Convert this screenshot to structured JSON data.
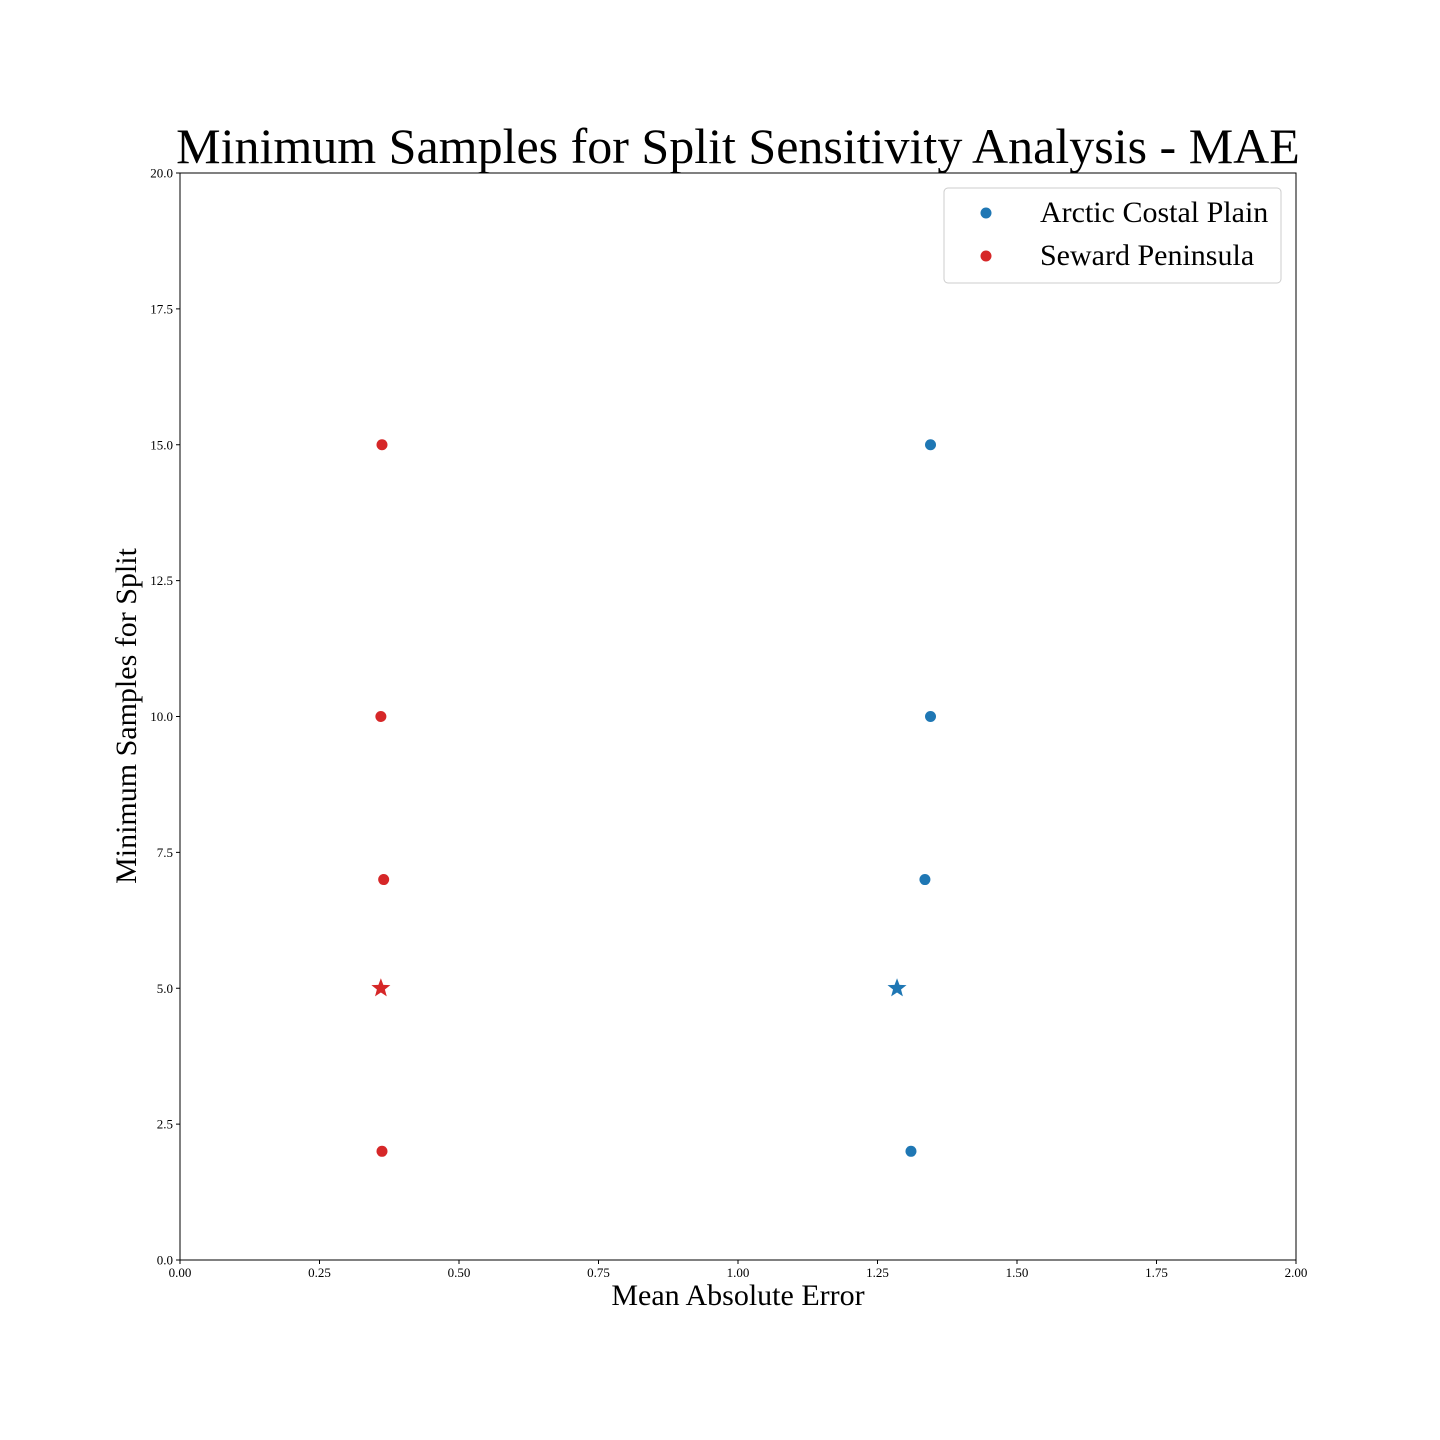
{
  "chart_data": {
    "type": "scatter",
    "title": "Minimum Samples for Split Sensitivity Analysis - MAE",
    "xlabel": "Mean Absolute Error",
    "ylabel": "Minimum Samples for Split",
    "xlim": [
      0,
      2
    ],
    "ylim": [
      0,
      20
    ],
    "xticks": [
      "0.00",
      "0.25",
      "0.50",
      "0.75",
      "1.00",
      "1.25",
      "1.50",
      "1.75",
      "2.00"
    ],
    "yticks": [
      "0.0",
      "2.5",
      "5.0",
      "7.5",
      "10.0",
      "12.5",
      "15.0",
      "17.5",
      "20.0"
    ],
    "grid": false,
    "legend_position": "top-right",
    "series": [
      {
        "name": "Arctic Costal Plain",
        "color": "#1f77b4",
        "points": [
          {
            "x": 1.31,
            "y": 2,
            "marker": "circle"
          },
          {
            "x": 1.285,
            "y": 5,
            "marker": "star"
          },
          {
            "x": 1.335,
            "y": 7,
            "marker": "circle"
          },
          {
            "x": 1.345,
            "y": 10,
            "marker": "circle"
          },
          {
            "x": 1.345,
            "y": 15,
            "marker": "circle"
          }
        ]
      },
      {
        "name": "Seward Peninsula",
        "color": "#d62728",
        "points": [
          {
            "x": 0.362,
            "y": 2,
            "marker": "circle"
          },
          {
            "x": 0.36,
            "y": 5,
            "marker": "star"
          },
          {
            "x": 0.365,
            "y": 7,
            "marker": "circle"
          },
          {
            "x": 0.36,
            "y": 10,
            "marker": "circle"
          },
          {
            "x": 0.362,
            "y": 15,
            "marker": "circle"
          }
        ]
      }
    ]
  }
}
